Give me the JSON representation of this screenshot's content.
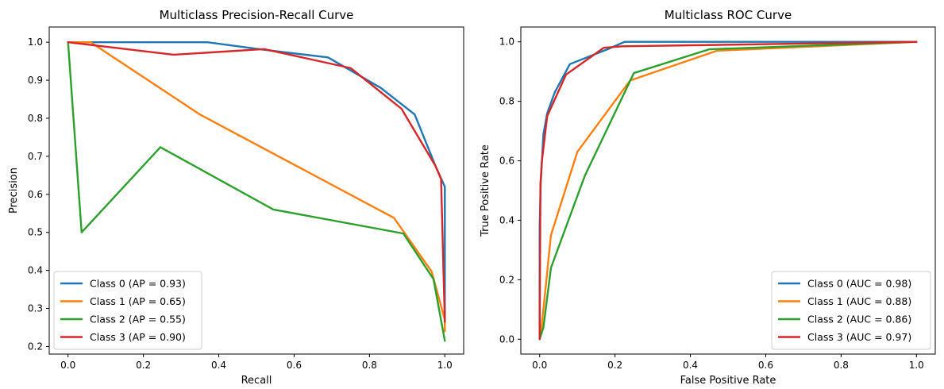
{
  "chart_data": [
    {
      "type": "line",
      "title": "Multiclass Precision-Recall Curve",
      "xlabel": "Recall",
      "ylabel": "Precision",
      "xlim": [
        -0.05,
        1.05
      ],
      "ylim": [
        0.18,
        1.04
      ],
      "xticks": [
        0.0,
        0.2,
        0.4,
        0.6,
        0.8,
        1.0
      ],
      "yticks": [
        0.2,
        0.3,
        0.4,
        0.5,
        0.6,
        0.7,
        0.8,
        0.9,
        1.0
      ],
      "xtick_labels": [
        "0.0",
        "0.2",
        "0.4",
        "0.6",
        "0.8",
        "1.0"
      ],
      "ytick_labels": [
        "0.2",
        "0.3",
        "0.4",
        "0.5",
        "0.6",
        "0.7",
        "0.8",
        "0.9",
        "1.0"
      ],
      "grid": false,
      "legend_position": "lower-left",
      "series": [
        {
          "name": "Class 0 (AP = 0.93)",
          "color": "#1f77b4",
          "x": [
            0.0,
            0.37,
            0.52,
            0.69,
            0.83,
            0.92,
            0.975,
            1.0,
            1.0
          ],
          "y": [
            1.0,
            1.0,
            0.98,
            0.96,
            0.88,
            0.81,
            0.675,
            0.62,
            0.26
          ]
        },
        {
          "name": "Class 1 (AP = 0.65)",
          "color": "#ff7f0e",
          "x": [
            0.0,
            0.06,
            0.35,
            0.865,
            0.965,
            1.0,
            1.0
          ],
          "y": [
            1.0,
            1.0,
            0.81,
            0.538,
            0.397,
            0.27,
            0.24
          ]
        },
        {
          "name": "Class 2 (AP = 0.55)",
          "color": "#2ca02c",
          "x": [
            0.0,
            0.036,
            0.245,
            0.545,
            0.89,
            0.97,
            1.0
          ],
          "y": [
            1.0,
            0.5,
            0.724,
            0.56,
            0.497,
            0.377,
            0.215
          ]
        },
        {
          "name": "Class 3 (AP = 0.90)",
          "color": "#d62728",
          "x": [
            0.0,
            0.06,
            0.28,
            0.52,
            0.75,
            0.885,
            0.975,
            0.99,
            1.0
          ],
          "y": [
            1.0,
            0.993,
            0.967,
            0.982,
            0.932,
            0.825,
            0.675,
            0.64,
            0.265
          ]
        }
      ]
    },
    {
      "type": "line",
      "title": "Multiclass ROC Curve",
      "xlabel": "False Positive Rate",
      "ylabel": "True Positive Rate",
      "xlim": [
        -0.05,
        1.05
      ],
      "ylim": [
        -0.05,
        1.05
      ],
      "xticks": [
        0.0,
        0.2,
        0.4,
        0.6,
        0.8,
        1.0
      ],
      "yticks": [
        0.0,
        0.2,
        0.4,
        0.6,
        0.8,
        1.0
      ],
      "xtick_labels": [
        "0.0",
        "0.2",
        "0.4",
        "0.6",
        "0.8",
        "1.0"
      ],
      "ytick_labels": [
        "0.0",
        "0.2",
        "0.4",
        "0.6",
        "0.8",
        "1.0"
      ],
      "grid": false,
      "legend_position": "lower-right",
      "series": [
        {
          "name": "Class 0 (AUC = 0.98)",
          "color": "#1f77b4",
          "x": [
            0.0,
            0.0,
            0.003,
            0.01,
            0.02,
            0.04,
            0.08,
            0.18,
            0.225,
            1.0
          ],
          "y": [
            0.0,
            0.38,
            0.53,
            0.69,
            0.76,
            0.83,
            0.925,
            0.975,
            1.0,
            1.0
          ]
        },
        {
          "name": "Class 1 (AUC = 0.88)",
          "color": "#ff7f0e",
          "x": [
            0.0,
            0.005,
            0.03,
            0.1,
            0.24,
            0.47,
            1.0
          ],
          "y": [
            0.0,
            0.04,
            0.35,
            0.63,
            0.87,
            0.97,
            1.0
          ]
        },
        {
          "name": "Class 2 (AUC = 0.86)",
          "color": "#2ca02c",
          "x": [
            0.0,
            0.01,
            0.03,
            0.12,
            0.25,
            0.45,
            1.0
          ],
          "y": [
            0.0,
            0.04,
            0.24,
            0.55,
            0.895,
            0.975,
            1.0
          ]
        },
        {
          "name": "Class 3 (AUC = 0.97)",
          "color": "#d62728",
          "x": [
            0.0,
            0.002,
            0.006,
            0.02,
            0.07,
            0.17,
            0.22,
            1.0
          ],
          "y": [
            0.0,
            0.52,
            0.6,
            0.75,
            0.89,
            0.98,
            0.985,
            1.0
          ]
        }
      ]
    }
  ]
}
